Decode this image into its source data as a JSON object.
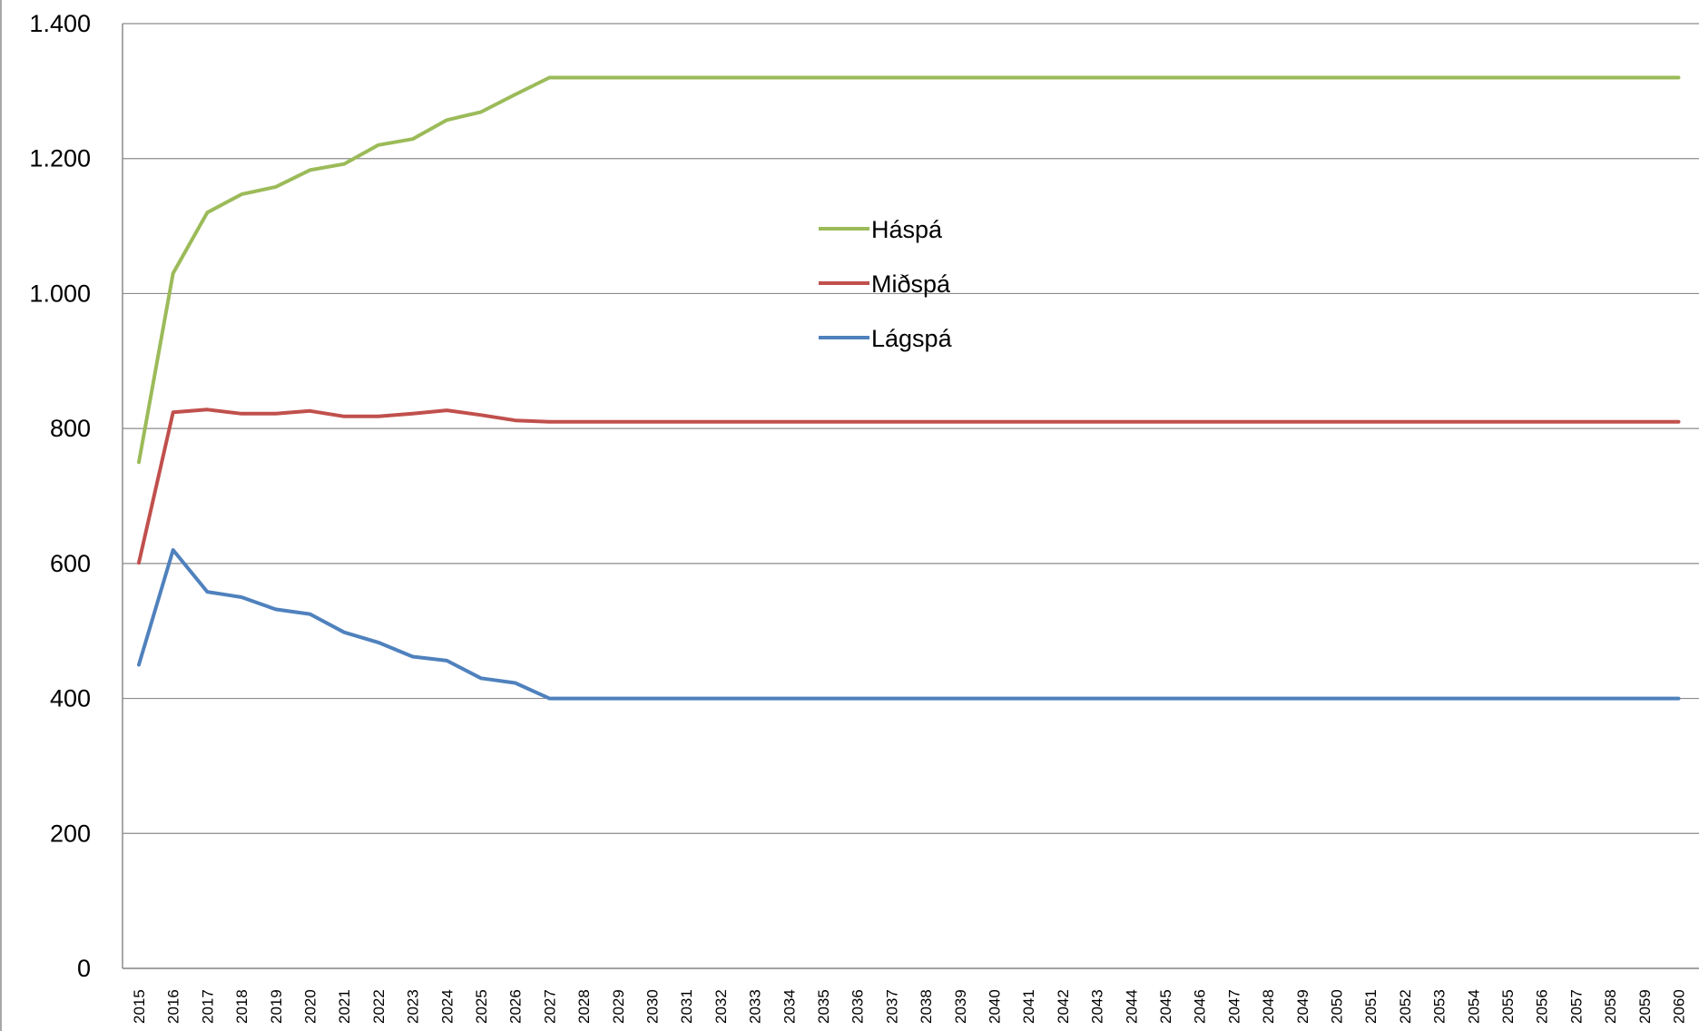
{
  "chart_data": {
    "type": "line",
    "title": "",
    "xlabel": "",
    "ylabel": "",
    "x": [
      "2015",
      "2016",
      "2017",
      "2018",
      "2019",
      "2020",
      "2021",
      "2022",
      "2023",
      "2024",
      "2025",
      "2026",
      "2027",
      "2028",
      "2029",
      "2030",
      "2031",
      "2032",
      "2033",
      "2034",
      "2035",
      "2036",
      "2037",
      "2038",
      "2039",
      "2040",
      "2041",
      "2042",
      "2043",
      "2044",
      "2045",
      "2046",
      "2047",
      "2048",
      "2049",
      "2050",
      "2051",
      "2052",
      "2053",
      "2054",
      "2055",
      "2056",
      "2057",
      "2058",
      "2059",
      "2060"
    ],
    "ylim": [
      0,
      1400
    ],
    "yticks": [
      0,
      200,
      400,
      600,
      800,
      1000,
      1200,
      1400
    ],
    "ytick_labels": [
      "0",
      "200",
      "400",
      "600",
      "800",
      "1.000",
      "1.200",
      "1.400"
    ],
    "grid": "horizontal",
    "legend_position": "center",
    "series": [
      {
        "name": "Háspá",
        "color": "#9bbb59",
        "values": [
          750,
          1030,
          1120,
          1147,
          1158,
          1183,
          1192,
          1220,
          1229,
          1257,
          1269,
          1295,
          1320,
          1320,
          1320,
          1320,
          1320,
          1320,
          1320,
          1320,
          1320,
          1320,
          1320,
          1320,
          1320,
          1320,
          1320,
          1320,
          1320,
          1320,
          1320,
          1320,
          1320,
          1320,
          1320,
          1320,
          1320,
          1320,
          1320,
          1320,
          1320,
          1320,
          1320,
          1320,
          1320,
          1320
        ]
      },
      {
        "name": "Miðspá",
        "color": "#c0504d",
        "values": [
          601,
          824,
          828,
          822,
          822,
          826,
          818,
          818,
          822,
          827,
          820,
          812,
          810,
          810,
          810,
          810,
          810,
          810,
          810,
          810,
          810,
          810,
          810,
          810,
          810,
          810,
          810,
          810,
          810,
          810,
          810,
          810,
          810,
          810,
          810,
          810,
          810,
          810,
          810,
          810,
          810,
          810,
          810,
          810,
          810,
          810
        ]
      },
      {
        "name": "Lágspá",
        "color": "#4f81bd",
        "values": [
          450,
          620,
          558,
          550,
          532,
          525,
          498,
          483,
          462,
          456,
          430,
          423,
          400,
          400,
          400,
          400,
          400,
          400,
          400,
          400,
          400,
          400,
          400,
          400,
          400,
          400,
          400,
          400,
          400,
          400,
          400,
          400,
          400,
          400,
          400,
          400,
          400,
          400,
          400,
          400,
          400,
          400,
          400,
          400,
          400,
          400
        ]
      }
    ]
  }
}
